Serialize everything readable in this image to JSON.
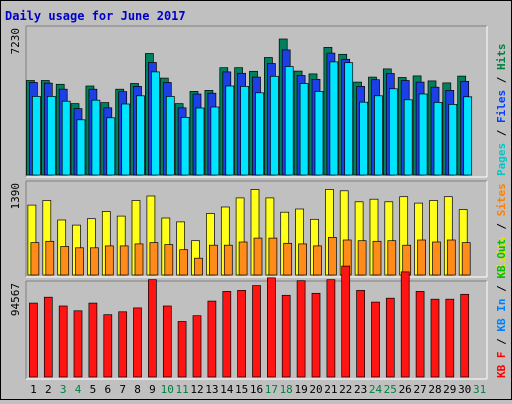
{
  "chart_data": {
    "type": "bar",
    "title": "Daily usage for June 2017",
    "days": [
      "1",
      "2",
      "3",
      "4",
      "5",
      "6",
      "7",
      "8",
      "9",
      "10",
      "11",
      "12",
      "13",
      "14",
      "15",
      "16",
      "17",
      "18",
      "19",
      "20",
      "21",
      "22",
      "23",
      "24",
      "25",
      "26",
      "27",
      "28",
      "29",
      "30",
      "31"
    ],
    "weekend_days": [
      "3",
      "4",
      "10",
      "11",
      "17",
      "18",
      "24",
      "25",
      "31"
    ],
    "panels": [
      {
        "id": "top",
        "max_label": "7230",
        "ymax": 7230,
        "legend": [
          {
            "label": "Pages",
            "color": "#00c8c8"
          },
          {
            "label": "Files",
            "color": "#0040ff"
          },
          {
            "label": "Hits",
            "color": "#008040"
          }
        ],
        "series": [
          {
            "name": "Hits",
            "color": "#00805c",
            "values": [
              4710,
              4710,
              4520,
              3560,
              4440,
              3610,
              4280,
              4560,
              6060,
              4830,
              3560,
              4170,
              4220,
              5350,
              5350,
              5170,
              5860,
              6780,
              5180,
              5040,
              6360,
              6020,
              4630,
              4880,
              5290,
              4860,
              4940,
              4690,
              4590,
              4930
            ]
          },
          {
            "name": "Files",
            "color": "#1c3fe6",
            "values": [
              4610,
              4580,
              4280,
              3310,
              4280,
              3350,
              4160,
              4420,
              5610,
              4610,
              3350,
              4040,
              4080,
              5140,
              5070,
              4880,
              5560,
              6240,
              4960,
              4770,
              6080,
              5770,
              4420,
              4750,
              5060,
              4710,
              4630,
              4380,
              4220,
              4670
            ]
          },
          {
            "name": "Pages",
            "color": "#00e5ff",
            "values": [
              3920,
              3920,
              3680,
              2750,
              3730,
              2850,
              3540,
              3950,
              5140,
              3920,
              2870,
              3340,
              3390,
              4440,
              4420,
              4100,
              4920,
              5410,
              4560,
              4170,
              5640,
              5600,
              3630,
              3950,
              4300,
              3750,
              4040,
              3620,
              3520,
              3900
            ]
          }
        ]
      },
      {
        "id": "mid",
        "max_label": "1390",
        "ymax": 1390,
        "legend": [
          {
            "label": "Visits",
            "color": "#e6e600"
          },
          {
            "label": "Sites",
            "color": "#ff8000"
          }
        ],
        "series": [
          {
            "name": "Visits",
            "color": "#ffff1a",
            "values": [
              1080,
              1150,
              850,
              770,
              870,
              980,
              910,
              1150,
              1220,
              880,
              820,
              530,
              950,
              1050,
              1190,
              1320,
              1190,
              970,
              1020,
              860,
              1320,
              1300,
              1130,
              1170,
              1130,
              1210,
              1110,
              1150,
              1210,
              1010
            ]
          },
          {
            "name": "Sites",
            "color": "#ff8c1a",
            "values": [
              500,
              520,
              440,
              420,
              420,
              450,
              450,
              480,
              500,
              470,
              390,
              260,
              460,
              460,
              510,
              570,
              570,
              490,
              480,
              450,
              580,
              540,
              530,
              520,
              530,
              460,
              540,
              510,
              540,
              500
            ]
          }
        ]
      },
      {
        "id": "bot",
        "max_label": "94567",
        "ymax": 94567,
        "legend": [
          {
            "label": "KB F",
            "color": "#ff0000"
          },
          {
            "label": "KB In",
            "color": "#0080ff"
          },
          {
            "label": "KB Out",
            "color": "#00c000"
          }
        ],
        "series": [
          {
            "name": "KB F",
            "color": "#ff1414",
            "values": [
              76000,
              82000,
              73000,
              68000,
              76000,
              64000,
              67000,
              71000,
              100000,
              73000,
              57000,
              63000,
              78000,
              88000,
              89000,
              94000,
              102000,
              84000,
              99000,
              86000,
              100000,
              114000,
              89000,
              77000,
              81000,
              108000,
              88000,
              80000,
              80000,
              85000
            ]
          }
        ]
      }
    ]
  }
}
